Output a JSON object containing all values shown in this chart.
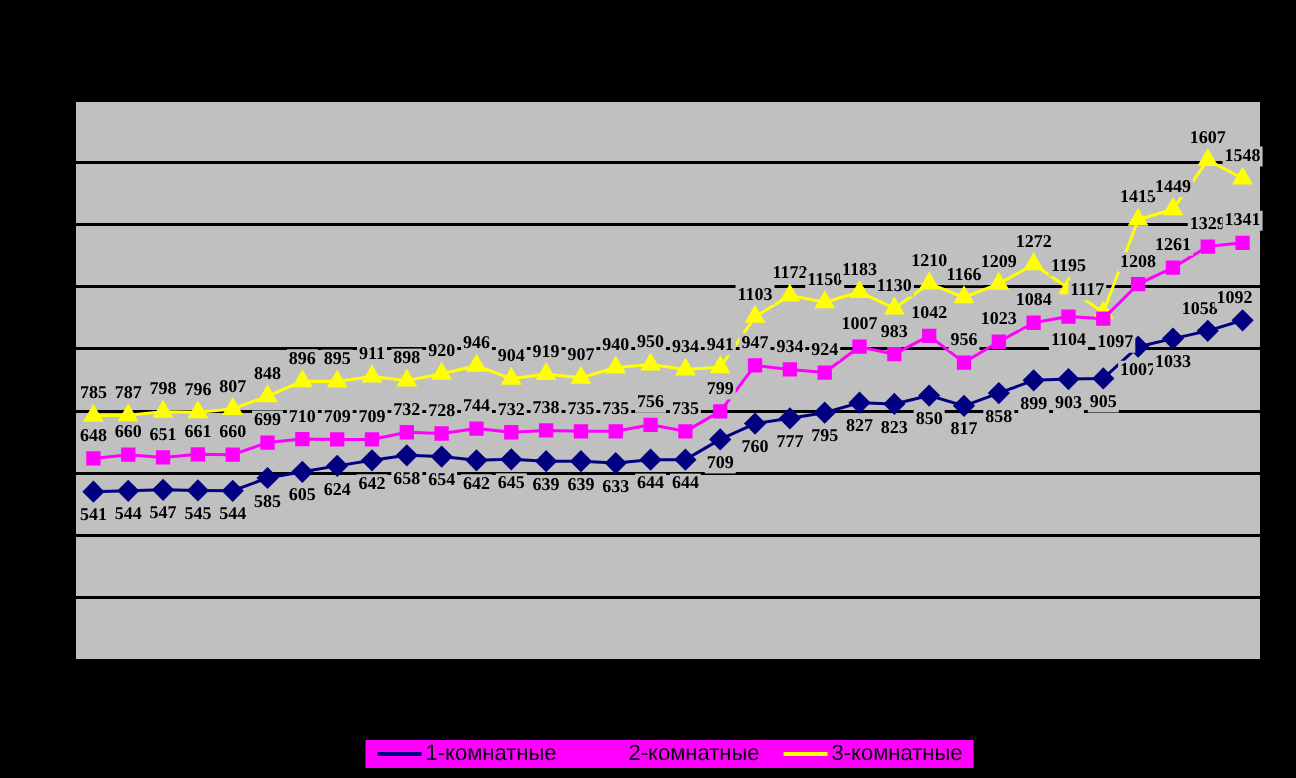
{
  "chart_data": {
    "type": "line",
    "categories": [
      null,
      null,
      null,
      null,
      null,
      null,
      null,
      null,
      null,
      null,
      null,
      null,
      null,
      null,
      null,
      null,
      null,
      null,
      null,
      null,
      null,
      null,
      null,
      null,
      null,
      null,
      null,
      null,
      null,
      null,
      null,
      null,
      null,
      null
    ],
    "series": [
      {
        "name": "1-комнатные",
        "color": "#000080",
        "marker": "diamond",
        "values": [
          541,
          544,
          547,
          545,
          544,
          585,
          605,
          624,
          642,
          658,
          654,
          642,
          645,
          639,
          639,
          633,
          644,
          644,
          709,
          760,
          777,
          795,
          827,
          823,
          850,
          817,
          858,
          899,
          903,
          905,
          1007,
          1033,
          1058,
          1092
        ]
      },
      {
        "name": "2-комнатные",
        "color": "#ff00ff",
        "marker": "square",
        "values": [
          648,
          660,
          651,
          661,
          660,
          699,
          710,
          709,
          709,
          732,
          728,
          744,
          732,
          738,
          735,
          735,
          756,
          735,
          799,
          947,
          934,
          924,
          1007,
          983,
          1042,
          956,
          1023,
          1084,
          1104,
          1097,
          1208,
          1261,
          1329,
          1341
        ]
      },
      {
        "name": "3-комнатные",
        "color": "#ffff00",
        "marker": "triangle",
        "values": [
          785,
          787,
          798,
          796,
          807,
          848,
          896,
          895,
          911,
          898,
          920,
          946,
          904,
          919,
          907,
          940,
          950,
          934,
          941,
          1103,
          1172,
          1150,
          1183,
          1130,
          1210,
          1166,
          1209,
          1272,
          1195,
          1117,
          1415,
          1449,
          1607,
          1548
        ]
      }
    ],
    "ylim": [
      0,
      1800
    ],
    "yticks": [
      {
        "value": 0,
        "label": null
      },
      {
        "value": 200,
        "label": null
      },
      {
        "value": 400,
        "label": null
      },
      {
        "value": 600,
        "label": null
      },
      {
        "value": 800,
        "label": null
      },
      {
        "value": 1000,
        "label": null
      },
      {
        "value": 1200,
        "label": null
      },
      {
        "value": 1400,
        "label": null
      },
      {
        "value": 1600,
        "label": null
      },
      {
        "value": 1800,
        "label": null
      }
    ],
    "grid": "y",
    "legend": "bottom",
    "data_labels": true,
    "line_style": "solid"
  }
}
